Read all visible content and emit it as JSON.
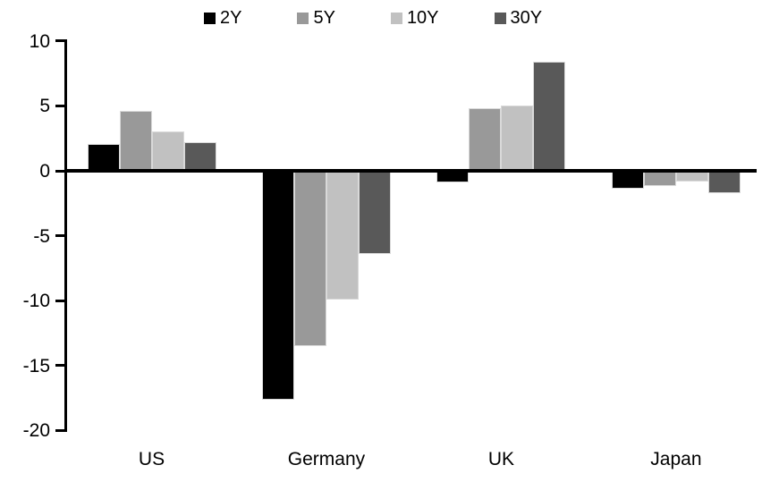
{
  "chart_data": {
    "type": "bar",
    "title": "",
    "categories": [
      "US",
      "Germany",
      "UK",
      "Japan"
    ],
    "series": [
      {
        "name": "2Y",
        "color": "#000000",
        "values": [
          2.1,
          -17.6,
          -0.9,
          -1.4
        ]
      },
      {
        "name": "5Y",
        "color": "#999999",
        "values": [
          4.6,
          -13.5,
          4.8,
          -1.2
        ]
      },
      {
        "name": "10Y",
        "color": "#c1c1c1",
        "values": [
          3.0,
          -9.9,
          5.0,
          -0.8
        ]
      },
      {
        "name": "30Y",
        "color": "#595959",
        "values": [
          2.2,
          -6.4,
          8.4,
          -1.7
        ]
      }
    ],
    "yticks": [
      10,
      5,
      0,
      -5,
      -10,
      -15,
      -20
    ],
    "ylim": [
      -20,
      10
    ],
    "xlabel": "",
    "ylabel": "",
    "grid": false,
    "legend_position": "top-center",
    "axis_color": "#000000",
    "bar_outline_color": "#d9d9d9"
  }
}
